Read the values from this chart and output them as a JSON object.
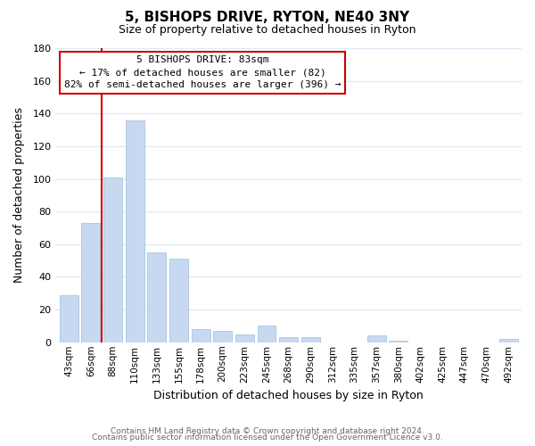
{
  "title": "5, BISHOPS DRIVE, RYTON, NE40 3NY",
  "subtitle": "Size of property relative to detached houses in Ryton",
  "xlabel": "Distribution of detached houses by size in Ryton",
  "ylabel": "Number of detached properties",
  "bar_labels": [
    "43sqm",
    "66sqm",
    "88sqm",
    "110sqm",
    "133sqm",
    "155sqm",
    "178sqm",
    "200sqm",
    "223sqm",
    "245sqm",
    "268sqm",
    "290sqm",
    "312sqm",
    "335sqm",
    "357sqm",
    "380sqm",
    "402sqm",
    "425sqm",
    "447sqm",
    "470sqm",
    "492sqm"
  ],
  "bar_values": [
    29,
    73,
    101,
    136,
    55,
    51,
    8,
    7,
    5,
    10,
    3,
    3,
    0,
    0,
    4,
    1,
    0,
    0,
    0,
    0,
    2
  ],
  "bar_color": "#c6d9f0",
  "bar_edge_color": "#a8c4e0",
  "ylim": [
    0,
    180
  ],
  "yticks": [
    0,
    20,
    40,
    60,
    80,
    100,
    120,
    140,
    160,
    180
  ],
  "vline_color": "#cc0000",
  "vline_x_index": 1.5,
  "annotation_title": "5 BISHOPS DRIVE: 83sqm",
  "annotation_line1": "← 17% of detached houses are smaller (82)",
  "annotation_line2": "82% of semi-detached houses are larger (396) →",
  "footer1": "Contains HM Land Registry data © Crown copyright and database right 2024.",
  "footer2": "Contains public sector information licensed under the Open Government Licence v3.0.",
  "background_color": "#ffffff",
  "grid_color": "#dce9f5"
}
